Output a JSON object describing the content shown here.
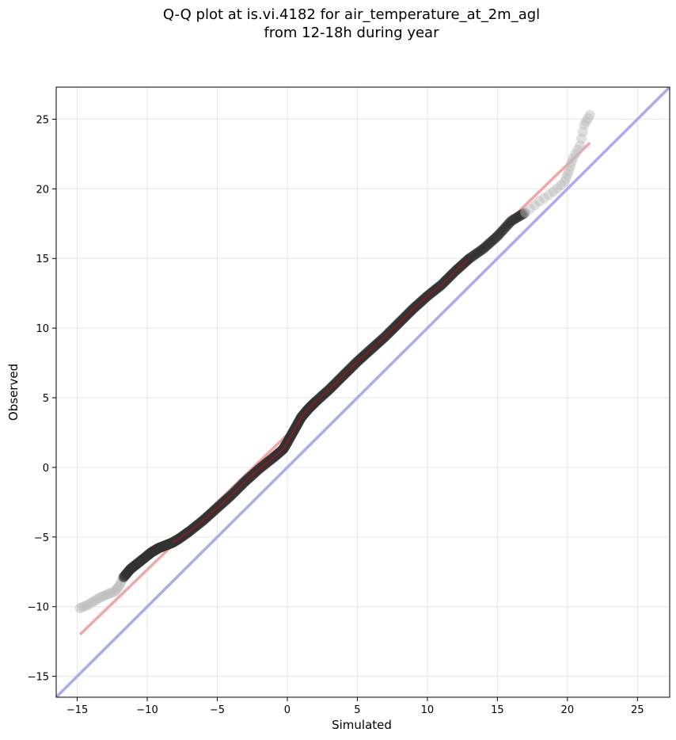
{
  "chart_data": {
    "type": "scatter",
    "title_lines": [
      "Q-Q plot at is.vi.4182 for air_temperature_at_2m_agl",
      "from 12-18h during year"
    ],
    "xlabel": "Simulated",
    "ylabel": "Observed",
    "xlim": [
      -16.5,
      27.3
    ],
    "ylim": [
      -16.5,
      27.3
    ],
    "xticks": [
      -15,
      -10,
      -5,
      0,
      5,
      10,
      15,
      20,
      25
    ],
    "yticks": [
      -15,
      -10,
      -5,
      0,
      5,
      10,
      15,
      20,
      25
    ],
    "xtick_labels": [
      "−15",
      "−10",
      "−5",
      "0",
      "5",
      "10",
      "15",
      "20",
      "25"
    ],
    "ytick_labels": [
      "−15",
      "−10",
      "−5",
      "0",
      "5",
      "10",
      "15",
      "20",
      "25"
    ],
    "grid": true,
    "quantile_curve": [
      [
        -14.8,
        -10.1
      ],
      [
        -14.3,
        -9.9
      ],
      [
        -13.8,
        -9.6
      ],
      [
        -13.3,
        -9.3
      ],
      [
        -12.8,
        -9.1
      ],
      [
        -12.3,
        -8.9
      ],
      [
        -12.0,
        -8.5
      ],
      [
        -11.7,
        -7.9
      ],
      [
        -11.2,
        -7.3
      ],
      [
        -10.7,
        -6.9
      ],
      [
        -10.2,
        -6.5
      ],
      [
        -9.7,
        -6.1
      ],
      [
        -9.2,
        -5.8
      ],
      [
        -8.7,
        -5.6
      ],
      [
        -8.2,
        -5.4
      ],
      [
        -7.7,
        -5.1
      ],
      [
        -7.0,
        -4.6
      ],
      [
        -6.0,
        -3.8
      ],
      [
        -5.0,
        -2.9
      ],
      [
        -4.0,
        -2.0
      ],
      [
        -3.0,
        -1.0
      ],
      [
        -2.0,
        -0.1
      ],
      [
        -1.0,
        0.7
      ],
      [
        -0.3,
        1.3
      ],
      [
        0.0,
        1.8
      ],
      [
        0.5,
        2.7
      ],
      [
        1.0,
        3.6
      ],
      [
        1.5,
        4.2
      ],
      [
        2.0,
        4.7
      ],
      [
        3.0,
        5.6
      ],
      [
        4.0,
        6.6
      ],
      [
        5.0,
        7.6
      ],
      [
        6.0,
        8.5
      ],
      [
        7.0,
        9.4
      ],
      [
        8.0,
        10.4
      ],
      [
        9.0,
        11.4
      ],
      [
        10.0,
        12.3
      ],
      [
        11.0,
        13.1
      ],
      [
        12.0,
        14.1
      ],
      [
        13.0,
        15.0
      ],
      [
        14.0,
        15.7
      ],
      [
        15.0,
        16.6
      ],
      [
        16.0,
        17.7
      ],
      [
        17.0,
        18.3
      ],
      [
        18.0,
        19.1
      ],
      [
        19.0,
        19.8
      ],
      [
        19.8,
        20.5
      ],
      [
        20.1,
        21.3
      ],
      [
        20.4,
        22.2
      ],
      [
        20.9,
        23.1
      ],
      [
        21.2,
        24.6
      ],
      [
        21.6,
        25.3
      ]
    ],
    "series": [
      {
        "kind": "regression-line",
        "color": "#f4a6a6",
        "x": [
          -14.8,
          21.6
        ],
        "y": [
          -12.0,
          23.3
        ]
      },
      {
        "kind": "identity-line",
        "color": "#aaaaf5",
        "x": [
          -16.5,
          27.3
        ],
        "y": [
          -16.5,
          27.3
        ]
      }
    ],
    "colors": {
      "points": "#333333",
      "tail_points": "#bbbbbb",
      "red_trace": "#b01010",
      "grid": "#e6e6e6"
    }
  }
}
